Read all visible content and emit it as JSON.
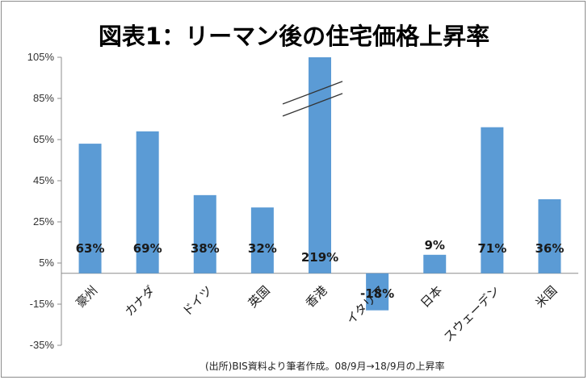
{
  "chart_data": {
    "type": "bar",
    "title": "図表1：リーマン後の住宅価格上昇率",
    "source_note": "(出所)BIS資料より筆者作成。08/9月→18/9月の上昇率",
    "categories": [
      "豪州",
      "カナダ",
      "ドイツ",
      "英国",
      "香港",
      "イタリア",
      "日本",
      "スウェーデン",
      "米国"
    ],
    "values": [
      63,
      69,
      38,
      32,
      219,
      -18,
      9,
      71,
      36
    ],
    "data_labels": [
      "63%",
      "69%",
      "38%",
      "32%",
      "219%",
      "-18%",
      "9%",
      "71%",
      "36%"
    ],
    "yticks": [
      105,
      85,
      65,
      45,
      25,
      5,
      -15,
      -35
    ],
    "ytick_labels": [
      "105%",
      "85%",
      "65%",
      "45%",
      "25%",
      "5%",
      "-15%",
      "-35%"
    ],
    "ylim": [
      -35,
      105
    ],
    "axis_break": "香港",
    "bar_color": "#5b9bd5",
    "grid": false,
    "legend": "none"
  }
}
